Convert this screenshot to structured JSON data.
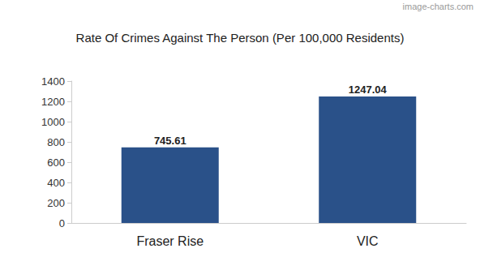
{
  "chart_data": {
    "type": "bar",
    "title": "Rate Of Crimes Against The Person (Per 100,000 Residents)",
    "annotations": [
      "image-charts.com"
    ],
    "categories": [
      "Fraser Rise",
      "VIC"
    ],
    "values": [
      745.61,
      1247.04
    ],
    "color": "#2a5189",
    "ylim": [
      0,
      1400
    ],
    "yticks": [
      0,
      200,
      400,
      600,
      800,
      1000,
      1200,
      1400
    ],
    "grid": false,
    "data_labels": true
  }
}
